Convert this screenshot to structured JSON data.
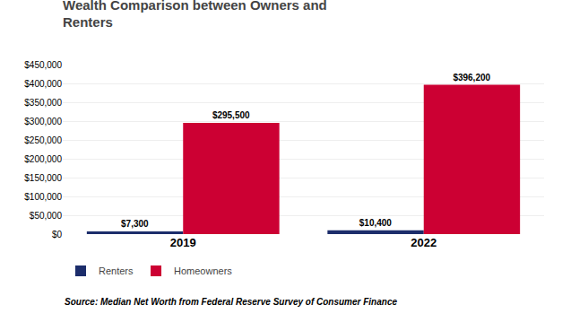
{
  "chart_data": {
    "type": "bar",
    "title": "Wealth Comparison between Owners and\nRenters",
    "categories": [
      "2019",
      "2022"
    ],
    "series": [
      {
        "name": "Renters",
        "color": "#1c2d6b",
        "values": [
          7300,
          10400
        ],
        "value_labels": [
          "$7,300",
          "$10,400"
        ]
      },
      {
        "name": "Homeowners",
        "color": "#cc0033",
        "values": [
          295500,
          396200
        ],
        "value_labels": [
          "$295,500",
          "$396,200"
        ]
      }
    ],
    "ylim": [
      0,
      450000
    ],
    "yticks": [
      {
        "value": 0,
        "label": "$0"
      },
      {
        "value": 50000,
        "label": "$50,000"
      },
      {
        "value": 100000,
        "label": "$100,000"
      },
      {
        "value": 150000,
        "label": "$150,000"
      },
      {
        "value": 200000,
        "label": "$200,000"
      },
      {
        "value": 250000,
        "label": "$250,000"
      },
      {
        "value": 300000,
        "label": "$300,000"
      },
      {
        "value": 350000,
        "label": "$350,000"
      },
      {
        "value": 400000,
        "label": "$400,000"
      },
      {
        "value": 450000,
        "label": "$450,000"
      }
    ],
    "grid": true,
    "legend": "bottom",
    "data_labels": true,
    "annotations": [
      "Source: Median Net Worth from Federal Reserve Survey of Consumer Finance"
    ]
  }
}
